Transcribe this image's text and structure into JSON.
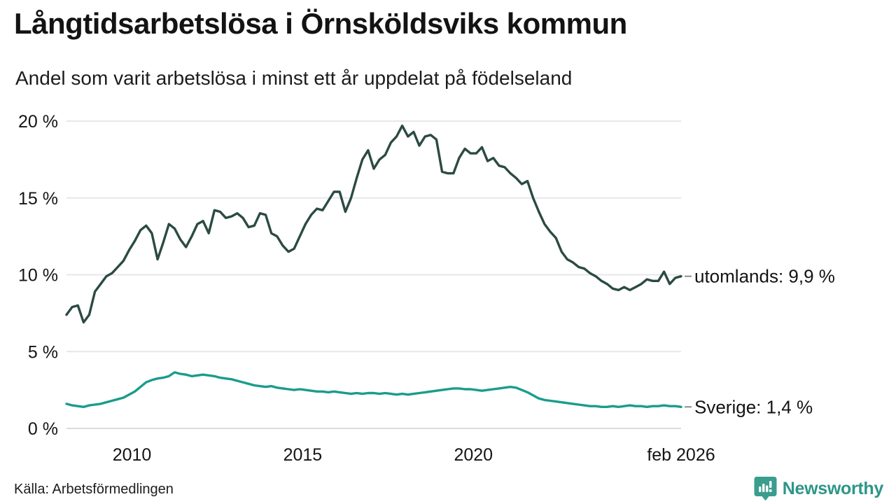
{
  "header": {
    "title": "Långtidsarbetslösa i Örnsköldsviks kommun",
    "subtitle": "Andel som varit arbetslösa i minst ett år uppdelat på födelseland"
  },
  "footer": {
    "source": "Källa: Arbetsförmedlingen",
    "brand": "Newsworthy",
    "brand_color": "#2d9687",
    "brand_icon": "newsworthy-speech-bubble-bar-chart-icon",
    "brand_icon_color": "#3a9d8e"
  },
  "chart_data": {
    "type": "line",
    "title": "Långtidsarbetslösa i Örnsköldsviks kommun",
    "subtitle": "Andel som varit arbetslösa i minst ett år uppdelat på födelseland",
    "xlabel": "",
    "ylabel": "",
    "ylim": [
      0,
      20
    ],
    "grid": "horizontal",
    "legend_position": "line-end-labels-right",
    "x_domain": [
      2008.083,
      2026.083
    ],
    "x_period": "feb 2008 till feb 2026, värden samplade varannan månad",
    "y_ticks": [
      {
        "v": 0,
        "label": "0 %"
      },
      {
        "v": 5,
        "label": "5 %"
      },
      {
        "v": 10,
        "label": "10 %"
      },
      {
        "v": 15,
        "label": "15 %"
      },
      {
        "v": 20,
        "label": "20 %"
      }
    ],
    "x_ticks": [
      {
        "t": 2010.0,
        "label": "2010"
      },
      {
        "t": 2015.0,
        "label": "2015"
      },
      {
        "t": 2020.0,
        "label": "2020"
      },
      {
        "t": 2026.083,
        "label": "feb 2026"
      }
    ],
    "series": [
      {
        "name": "utomlands",
        "end_label": "utomlands: 9,9 %",
        "end_value": 9.9,
        "color": "#2b4a43",
        "values": [
          7.4,
          7.9,
          8.0,
          6.9,
          7.4,
          8.9,
          9.4,
          9.9,
          10.1,
          10.5,
          10.9,
          11.6,
          12.2,
          12.9,
          13.2,
          12.7,
          11.0,
          12.1,
          13.3,
          13.0,
          12.3,
          11.8,
          12.5,
          13.3,
          13.5,
          12.7,
          14.2,
          14.1,
          13.7,
          13.8,
          14.0,
          13.7,
          13.1,
          13.2,
          14.0,
          13.9,
          12.7,
          12.5,
          11.9,
          11.5,
          11.7,
          12.5,
          13.3,
          13.9,
          14.3,
          14.2,
          14.8,
          15.4,
          15.4,
          14.1,
          15.0,
          16.3,
          17.5,
          18.1,
          16.9,
          17.5,
          17.8,
          18.6,
          19.0,
          19.7,
          19.0,
          19.3,
          18.4,
          19.0,
          19.1,
          18.8,
          16.7,
          16.6,
          16.6,
          17.6,
          18.2,
          17.9,
          17.9,
          18.3,
          17.4,
          17.6,
          17.1,
          17.0,
          16.6,
          16.3,
          15.9,
          16.1,
          15.0,
          14.1,
          13.3,
          12.8,
          12.4,
          11.5,
          11.0,
          10.8,
          10.5,
          10.4,
          10.1,
          9.9,
          9.6,
          9.4,
          9.1,
          9.0,
          9.2,
          9.0,
          9.2,
          9.4,
          9.7,
          9.6,
          9.6,
          10.2,
          9.4,
          9.8,
          9.9
        ]
      },
      {
        "name": "Sverige",
        "end_label": "Sverige: 1,4 %",
        "end_value": 1.4,
        "color": "#1a9c8c",
        "values": [
          1.6,
          1.5,
          1.45,
          1.4,
          1.5,
          1.55,
          1.6,
          1.7,
          1.8,
          1.9,
          2.0,
          2.2,
          2.4,
          2.7,
          3.0,
          3.15,
          3.25,
          3.3,
          3.4,
          3.65,
          3.55,
          3.5,
          3.4,
          3.45,
          3.5,
          3.45,
          3.4,
          3.3,
          3.25,
          3.2,
          3.1,
          3.0,
          2.9,
          2.8,
          2.75,
          2.7,
          2.75,
          2.65,
          2.6,
          2.55,
          2.5,
          2.55,
          2.5,
          2.45,
          2.4,
          2.4,
          2.35,
          2.4,
          2.35,
          2.3,
          2.25,
          2.3,
          2.25,
          2.3,
          2.3,
          2.25,
          2.3,
          2.25,
          2.2,
          2.25,
          2.2,
          2.25,
          2.3,
          2.35,
          2.4,
          2.45,
          2.5,
          2.55,
          2.6,
          2.6,
          2.55,
          2.55,
          2.5,
          2.45,
          2.5,
          2.55,
          2.6,
          2.65,
          2.7,
          2.65,
          2.5,
          2.35,
          2.15,
          1.95,
          1.85,
          1.8,
          1.75,
          1.7,
          1.65,
          1.6,
          1.55,
          1.5,
          1.45,
          1.45,
          1.4,
          1.4,
          1.45,
          1.4,
          1.45,
          1.5,
          1.45,
          1.45,
          1.4,
          1.45,
          1.45,
          1.5,
          1.45,
          1.45,
          1.4
        ]
      }
    ]
  }
}
